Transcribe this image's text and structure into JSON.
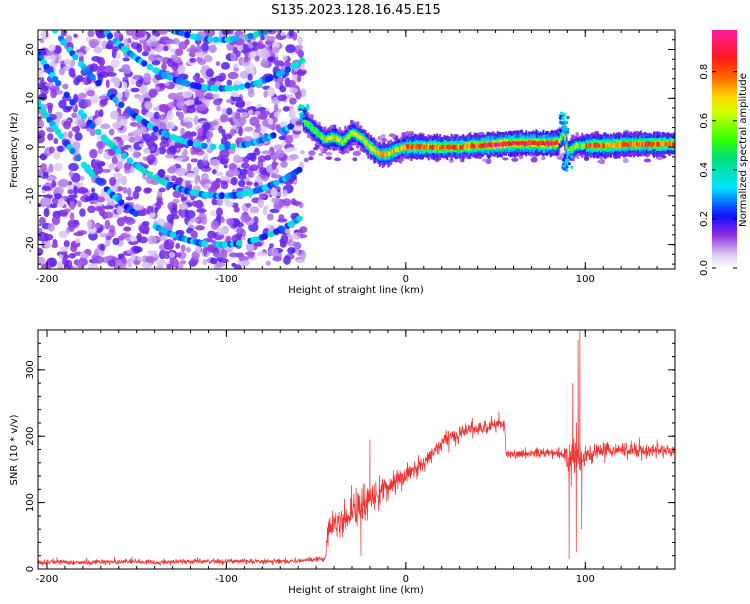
{
  "page_title": "S135.2023.128.16.45.E15",
  "colors": {
    "snr_line": "#ee3333",
    "background": "#ffffff",
    "spectrogram_background": "#ffffff"
  },
  "chart_data": [
    {
      "type": "heatmap",
      "title": "S135.2023.128.16.45.E15",
      "xlabel": "Height of straight line (km)",
      "ylabel": "Frequency (Hz)",
      "xlim": [
        -205,
        150
      ],
      "ylim": [
        -25,
        24
      ],
      "x_ticks": [
        -200,
        -100,
        0,
        100
      ],
      "y_ticks": [
        20,
        10,
        0,
        -10,
        -20
      ],
      "colorbar": {
        "label": "Normalized spectral amplitude",
        "range": [
          0.0,
          0.97
        ],
        "ticks": [
          0.0,
          0.2,
          0.4,
          0.6,
          0.8
        ],
        "colormap": "gist_ncar-like (white-purple-blue-cyan-green-yellow-red-pink)"
      },
      "features": {
        "noise_region_x": [
          -205,
          -57
        ],
        "noise_typical_amplitude": 0.15,
        "arc_ridge_amplitude": 0.3,
        "arc_ridges": [
          {
            "vertex_x": -103,
            "vertex_y": -20
          },
          {
            "vertex_x": -103,
            "vertex_y": -10
          },
          {
            "vertex_x": -103,
            "vertex_y": 0
          },
          {
            "vertex_x": -103,
            "vertex_y": 12
          },
          {
            "vertex_x": -103,
            "vertex_y": 22
          }
        ],
        "carrier_line": [
          {
            "x": -57,
            "y": 5.5
          },
          {
            "x": -50,
            "y": 3
          },
          {
            "x": -45,
            "y": 1.5
          },
          {
            "x": -40,
            "y": 2
          },
          {
            "x": -35,
            "y": 1
          },
          {
            "x": -30,
            "y": 3
          },
          {
            "x": -25,
            "y": 2
          },
          {
            "x": -20,
            "y": 0
          },
          {
            "x": -15,
            "y": -1.5
          },
          {
            "x": -10,
            "y": -1.5
          },
          {
            "x": -5,
            "y": -0.5
          },
          {
            "x": 0,
            "y": 0
          },
          {
            "x": 10,
            "y": 0
          },
          {
            "x": 20,
            "y": 0
          },
          {
            "x": 30,
            "y": 0
          },
          {
            "x": 40,
            "y": 0.3
          },
          {
            "x": 50,
            "y": 0.5
          },
          {
            "x": 60,
            "y": 0.8
          },
          {
            "x": 70,
            "y": 0.8
          },
          {
            "x": 80,
            "y": 0.7
          },
          {
            "x": 85,
            "y": 1
          },
          {
            "x": 88,
            "y": 3
          },
          {
            "x": 90,
            "y": -1
          },
          {
            "x": 95,
            "y": 0.3
          },
          {
            "x": 100,
            "y": 0.3
          },
          {
            "x": 110,
            "y": 0.3
          },
          {
            "x": 120,
            "y": 0.5
          },
          {
            "x": 130,
            "y": 0.6
          },
          {
            "x": 150,
            "y": 0.6
          }
        ]
      }
    },
    {
      "type": "line",
      "xlabel": "Height of straight line (km)",
      "ylabel": "SNR (10 * v/v)",
      "xlim": [
        -205,
        150
      ],
      "ylim": [
        0,
        360
      ],
      "x_ticks": [
        -200,
        -100,
        0,
        100
      ],
      "y_ticks": [
        0,
        100,
        200,
        300
      ],
      "series": [
        {
          "envelope": [
            {
              "x": -205,
              "mean": 10,
              "noise": 5
            },
            {
              "x": -130,
              "mean": 11,
              "noise": 5
            },
            {
              "x": -60,
              "mean": 12,
              "noise": 5
            },
            {
              "x": -45,
              "mean": 15,
              "noise": 6
            },
            {
              "x": -43,
              "mean": 60,
              "noise": 35
            },
            {
              "x": -30,
              "mean": 85,
              "noise": 35
            },
            {
              "x": -20,
              "mean": 105,
              "noise": 30
            },
            {
              "x": -10,
              "mean": 125,
              "noise": 30
            },
            {
              "x": 0,
              "mean": 140,
              "noise": 25
            },
            {
              "x": 10,
              "mean": 160,
              "noise": 20
            },
            {
              "x": 20,
              "mean": 190,
              "noise": 18
            },
            {
              "x": 35,
              "mean": 210,
              "noise": 15
            },
            {
              "x": 50,
              "mean": 218,
              "noise": 14
            },
            {
              "x": 55,
              "mean": 215,
              "noise": 14
            },
            {
              "x": 56,
              "mean": 172,
              "noise": 10
            },
            {
              "x": 80,
              "mean": 175,
              "noise": 10
            },
            {
              "x": 88,
              "mean": 172,
              "noise": 12
            },
            {
              "x": 92,
              "mean": 165,
              "noise": 60
            },
            {
              "x": 100,
              "mean": 170,
              "noise": 22
            },
            {
              "x": 110,
              "mean": 178,
              "noise": 15
            },
            {
              "x": 150,
              "mean": 178,
              "noise": 12
            }
          ],
          "spikes": [
            {
              "x": -25,
              "y": 20
            },
            {
              "x": -20,
              "y": 195
            },
            {
              "x": 91,
              "y": 15
            },
            {
              "x": 93,
              "y": 280
            },
            {
              "x": 95,
              "y": 25
            },
            {
              "x": 96,
              "y": 345
            },
            {
              "x": 97,
              "y": 360
            },
            {
              "x": 98,
              "y": 60
            }
          ]
        }
      ]
    }
  ]
}
